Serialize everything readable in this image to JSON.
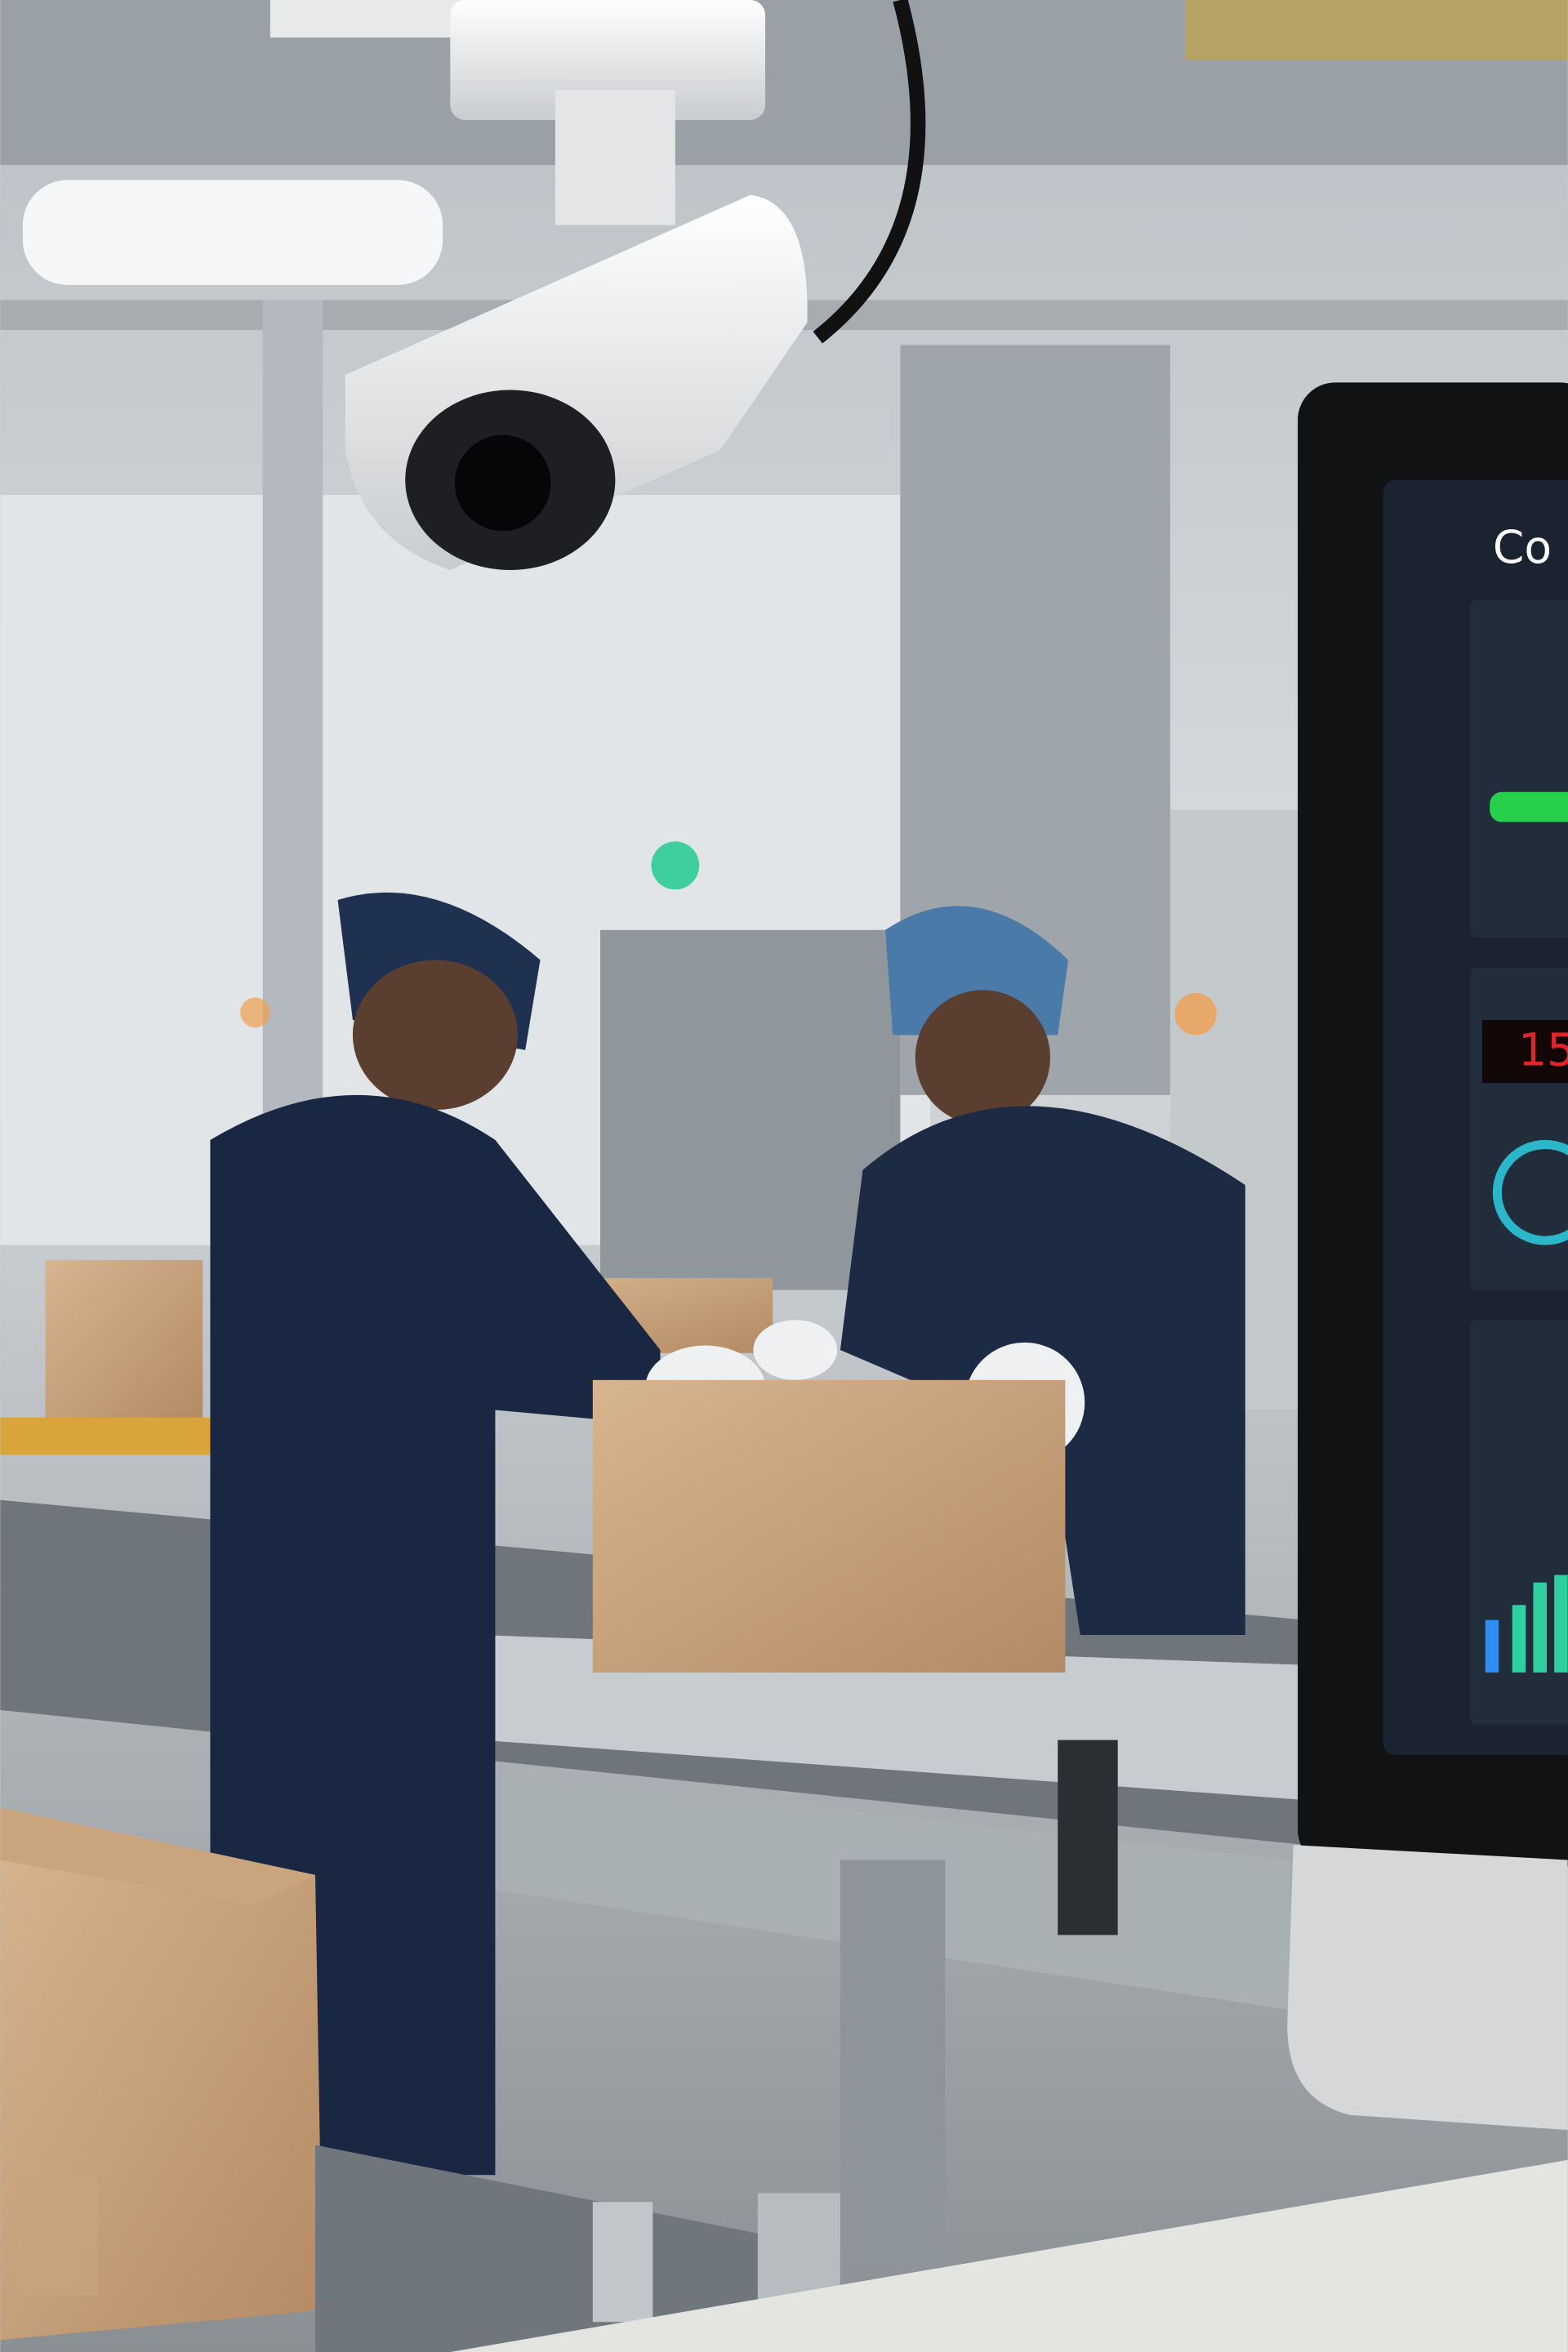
{
  "monitor": {
    "title_fragment": "Co",
    "counter_fragment": "15"
  }
}
